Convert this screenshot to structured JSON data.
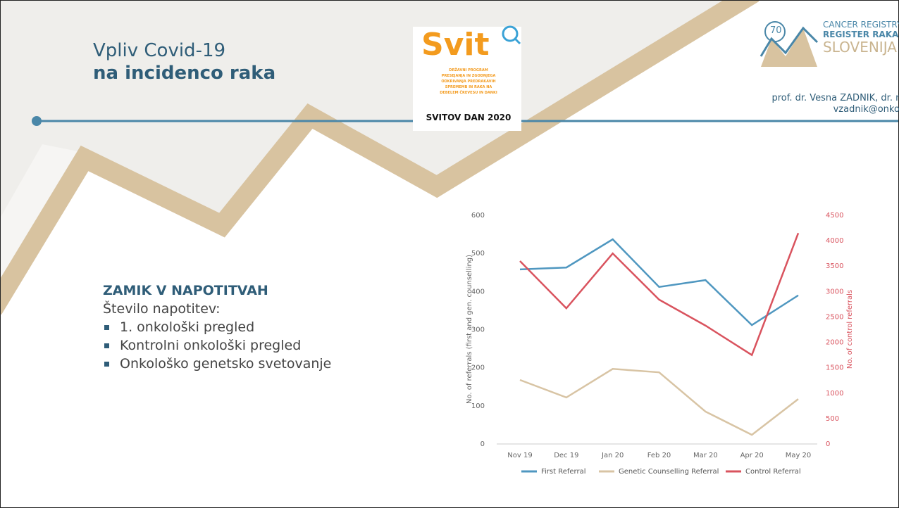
{
  "header": {
    "title_line1": "Vpliv Covid-19",
    "title_line2": "na incidenco raka",
    "svit_logo": "Svit",
    "svit_text": [
      "DRŽAVNI PROGRAM",
      "PRESEJANJA IN ZGODNJEGA",
      "ODKRIVANJA PREDRAKAVIH",
      "SPREMEMB IN RAKA NA",
      "DEBELEM ČREVESU IN DANKI"
    ],
    "svit_day": "SVITOV DAN 2020",
    "registry_number": "70",
    "registry_line1": "CANCER REGISTRY",
    "registry_line2": "REGISTER RAKA",
    "registry_line3": "SLOVENIJA",
    "author": "prof. dr. Vesna ZADNIK, dr. med",
    "email": "vzadnik@onko-i.si"
  },
  "content": {
    "heading": "ZAMIK V NAPOTITVAH",
    "intro": "Število napotitev:",
    "bullets": [
      "1. onkološki pregled",
      "Kontrolni onkološki pregled",
      "Onkološko genetsko svetovanje"
    ]
  },
  "chart_data": {
    "type": "line",
    "categories": [
      "Nov 19",
      "Dec 19",
      "Jan 20",
      "Feb 20",
      "Mar 20",
      "Apr 20",
      "May 20"
    ],
    "ylabel": "No. of referrals (first and gen. counselling)",
    "y2label": "No. of control referrals",
    "ylim": [
      0,
      600
    ],
    "yticks": [
      0,
      100,
      200,
      300,
      400,
      500,
      600
    ],
    "y2lim": [
      0,
      4500
    ],
    "y2ticks": [
      0,
      500,
      1000,
      1500,
      2000,
      2500,
      3000,
      3500,
      4000,
      4500
    ],
    "series": [
      {
        "name": "First Referral",
        "color": "#4f97c0",
        "values": [
          458,
          463,
          537,
          412,
          430,
          312,
          390
        ]
      },
      {
        "name": "Genetic Counselling Referral",
        "color": "#d8c4a4",
        "values": [
          168,
          122,
          197,
          188,
          85,
          24,
          118
        ]
      },
      {
        "name": "Control Referral",
        "color": "#d9535e",
        "axis": "y2",
        "values": [
          3600,
          2670,
          3750,
          2840,
          2330,
          1750,
          4150
        ]
      }
    ]
  }
}
